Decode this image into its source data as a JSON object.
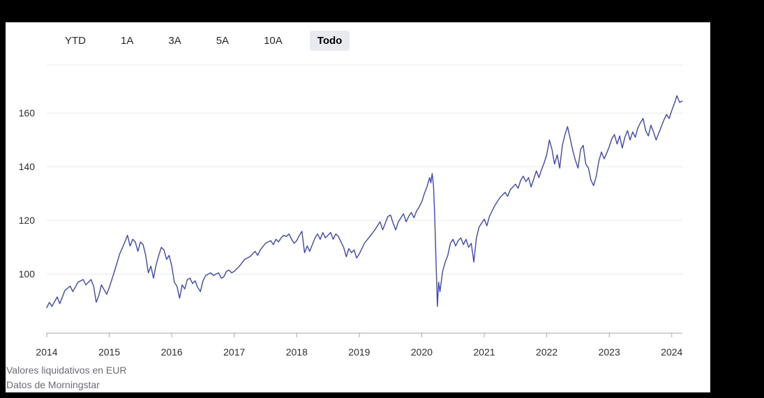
{
  "tabs": {
    "items": [
      {
        "label": "YTD",
        "selected": false
      },
      {
        "label": "1A",
        "selected": false
      },
      {
        "label": "3A",
        "selected": false
      },
      {
        "label": "5A",
        "selected": false
      },
      {
        "label": "10A",
        "selected": false
      },
      {
        "label": "Todo",
        "selected": true
      }
    ]
  },
  "footer": {
    "line1": "Valores liquidativos en EUR",
    "line2": "Datos de Morningstar"
  },
  "colors": {
    "line": "#3b46c0",
    "grid": "#e8e8e8",
    "axis": "#a6a6a6",
    "tick_label": "#2d2d2d",
    "footer_text": "#6b6b75",
    "selected_tab_bg": "#e9eaef"
  },
  "chart_data": {
    "type": "line",
    "title": "",
    "xlabel": "",
    "ylabel": "",
    "legend": "none",
    "grid": "horizontal",
    "x_axis": {
      "ticks": [
        2014,
        2015,
        2016,
        2017,
        2018,
        2019,
        2020,
        2021,
        2022,
        2023,
        2024
      ],
      "range": [
        2014,
        2024.17
      ]
    },
    "y_axis": {
      "ticks": [
        100,
        120,
        140,
        160
      ],
      "range": [
        78,
        178
      ]
    },
    "series": [
      {
        "name": "Valores liquidativos en EUR",
        "points": [
          [
            2014.0,
            87.5
          ],
          [
            2014.042,
            89.5
          ],
          [
            2014.083,
            88.0
          ],
          [
            2014.167,
            91.5
          ],
          [
            2014.208,
            89.0
          ],
          [
            2014.292,
            94.0
          ],
          [
            2014.375,
            95.5
          ],
          [
            2014.417,
            93.5
          ],
          [
            2014.5,
            97.0
          ],
          [
            2014.583,
            98.0
          ],
          [
            2014.625,
            96.0
          ],
          [
            2014.708,
            98.0
          ],
          [
            2014.75,
            95.5
          ],
          [
            2014.792,
            89.5
          ],
          [
            2014.833,
            92.0
          ],
          [
            2014.875,
            96.0
          ],
          [
            2014.958,
            92.5
          ],
          [
            2015.0,
            95.0
          ],
          [
            2015.083,
            101.0
          ],
          [
            2015.167,
            107.5
          ],
          [
            2015.25,
            112.0
          ],
          [
            2015.292,
            114.5
          ],
          [
            2015.333,
            110.5
          ],
          [
            2015.375,
            113.0
          ],
          [
            2015.417,
            112.0
          ],
          [
            2015.458,
            108.5
          ],
          [
            2015.5,
            112.0
          ],
          [
            2015.542,
            111.0
          ],
          [
            2015.583,
            107.0
          ],
          [
            2015.625,
            100.5
          ],
          [
            2015.667,
            103.0
          ],
          [
            2015.708,
            98.5
          ],
          [
            2015.75,
            103.5
          ],
          [
            2015.792,
            107.0
          ],
          [
            2015.833,
            110.0
          ],
          [
            2015.875,
            109.0
          ],
          [
            2015.917,
            105.5
          ],
          [
            2015.958,
            107.0
          ],
          [
            2016.0,
            103.0
          ],
          [
            2016.042,
            97.0
          ],
          [
            2016.083,
            95.5
          ],
          [
            2016.125,
            91.0
          ],
          [
            2016.167,
            96.0
          ],
          [
            2016.208,
            94.5
          ],
          [
            2016.25,
            98.0
          ],
          [
            2016.292,
            98.5
          ],
          [
            2016.333,
            96.5
          ],
          [
            2016.375,
            97.5
          ],
          [
            2016.417,
            95.0
          ],
          [
            2016.458,
            93.5
          ],
          [
            2016.5,
            97.5
          ],
          [
            2016.542,
            99.5
          ],
          [
            2016.583,
            100.0
          ],
          [
            2016.625,
            100.5
          ],
          [
            2016.667,
            99.5
          ],
          [
            2016.708,
            100.0
          ],
          [
            2016.75,
            100.5
          ],
          [
            2016.792,
            98.5
          ],
          [
            2016.833,
            99.0
          ],
          [
            2016.875,
            101.0
          ],
          [
            2016.917,
            101.5
          ],
          [
            2016.958,
            100.5
          ],
          [
            2017.0,
            101.0
          ],
          [
            2017.083,
            103.0
          ],
          [
            2017.167,
            105.5
          ],
          [
            2017.25,
            106.5
          ],
          [
            2017.333,
            108.5
          ],
          [
            2017.375,
            107.0
          ],
          [
            2017.417,
            109.0
          ],
          [
            2017.5,
            111.5
          ],
          [
            2017.583,
            112.5
          ],
          [
            2017.625,
            111.0
          ],
          [
            2017.667,
            113.0
          ],
          [
            2017.708,
            112.0
          ],
          [
            2017.75,
            113.5
          ],
          [
            2017.792,
            114.5
          ],
          [
            2017.833,
            114.0
          ],
          [
            2017.875,
            115.0
          ],
          [
            2017.917,
            113.0
          ],
          [
            2017.958,
            111.5
          ],
          [
            2018.0,
            112.5
          ],
          [
            2018.042,
            114.5
          ],
          [
            2018.083,
            116.0
          ],
          [
            2018.125,
            108.0
          ],
          [
            2018.167,
            110.5
          ],
          [
            2018.208,
            108.5
          ],
          [
            2018.25,
            111.0
          ],
          [
            2018.292,
            113.5
          ],
          [
            2018.333,
            115.0
          ],
          [
            2018.375,
            113.0
          ],
          [
            2018.417,
            115.5
          ],
          [
            2018.458,
            113.5
          ],
          [
            2018.5,
            114.5
          ],
          [
            2018.542,
            115.5
          ],
          [
            2018.583,
            113.0
          ],
          [
            2018.625,
            115.0
          ],
          [
            2018.667,
            114.0
          ],
          [
            2018.708,
            112.0
          ],
          [
            2018.75,
            110.0
          ],
          [
            2018.792,
            106.5
          ],
          [
            2018.833,
            109.5
          ],
          [
            2018.875,
            108.0
          ],
          [
            2018.917,
            109.0
          ],
          [
            2018.958,
            106.0
          ],
          [
            2019.0,
            107.5
          ],
          [
            2019.083,
            111.5
          ],
          [
            2019.167,
            114.0
          ],
          [
            2019.25,
            116.5
          ],
          [
            2019.333,
            119.5
          ],
          [
            2019.375,
            116.5
          ],
          [
            2019.417,
            119.0
          ],
          [
            2019.458,
            121.5
          ],
          [
            2019.5,
            122.0
          ],
          [
            2019.542,
            119.0
          ],
          [
            2019.583,
            116.5
          ],
          [
            2019.625,
            119.5
          ],
          [
            2019.667,
            121.0
          ],
          [
            2019.708,
            122.5
          ],
          [
            2019.75,
            119.5
          ],
          [
            2019.792,
            121.5
          ],
          [
            2019.833,
            123.0
          ],
          [
            2019.875,
            121.0
          ],
          [
            2019.917,
            123.5
          ],
          [
            2019.958,
            125.0
          ],
          [
            2020.0,
            127.0
          ],
          [
            2020.042,
            130.0
          ],
          [
            2020.083,
            132.5
          ],
          [
            2020.125,
            136.0
          ],
          [
            2020.146,
            134.0
          ],
          [
            2020.167,
            137.5
          ],
          [
            2020.188,
            133.0
          ],
          [
            2020.208,
            121.0
          ],
          [
            2020.229,
            104.0
          ],
          [
            2020.25,
            88.0
          ],
          [
            2020.271,
            97.0
          ],
          [
            2020.292,
            93.5
          ],
          [
            2020.333,
            101.0
          ],
          [
            2020.375,
            104.5
          ],
          [
            2020.417,
            107.0
          ],
          [
            2020.458,
            111.5
          ],
          [
            2020.5,
            113.0
          ],
          [
            2020.542,
            110.5
          ],
          [
            2020.583,
            112.5
          ],
          [
            2020.625,
            113.5
          ],
          [
            2020.667,
            111.0
          ],
          [
            2020.708,
            113.0
          ],
          [
            2020.75,
            110.0
          ],
          [
            2020.792,
            111.5
          ],
          [
            2020.833,
            104.5
          ],
          [
            2020.875,
            113.5
          ],
          [
            2020.917,
            117.5
          ],
          [
            2020.958,
            119.0
          ],
          [
            2021.0,
            120.5
          ],
          [
            2021.042,
            118.0
          ],
          [
            2021.083,
            121.5
          ],
          [
            2021.167,
            125.5
          ],
          [
            2021.25,
            128.5
          ],
          [
            2021.333,
            130.5
          ],
          [
            2021.375,
            129.0
          ],
          [
            2021.417,
            131.5
          ],
          [
            2021.5,
            133.5
          ],
          [
            2021.542,
            132.0
          ],
          [
            2021.583,
            135.0
          ],
          [
            2021.625,
            136.5
          ],
          [
            2021.667,
            134.5
          ],
          [
            2021.708,
            136.0
          ],
          [
            2021.75,
            132.5
          ],
          [
            2021.792,
            135.5
          ],
          [
            2021.833,
            138.5
          ],
          [
            2021.875,
            136.0
          ],
          [
            2021.917,
            139.0
          ],
          [
            2021.958,
            141.5
          ],
          [
            2022.0,
            144.5
          ],
          [
            2022.042,
            150.0
          ],
          [
            2022.083,
            146.5
          ],
          [
            2022.125,
            141.0
          ],
          [
            2022.167,
            144.5
          ],
          [
            2022.208,
            139.5
          ],
          [
            2022.25,
            148.0
          ],
          [
            2022.292,
            152.0
          ],
          [
            2022.333,
            155.0
          ],
          [
            2022.375,
            150.5
          ],
          [
            2022.417,
            146.0
          ],
          [
            2022.458,
            142.5
          ],
          [
            2022.5,
            139.5
          ],
          [
            2022.542,
            146.5
          ],
          [
            2022.583,
            148.0
          ],
          [
            2022.625,
            141.0
          ],
          [
            2022.667,
            139.5
          ],
          [
            2022.708,
            135.0
          ],
          [
            2022.75,
            133.0
          ],
          [
            2022.792,
            136.5
          ],
          [
            2022.833,
            142.0
          ],
          [
            2022.875,
            145.5
          ],
          [
            2022.917,
            143.0
          ],
          [
            2022.958,
            145.0
          ],
          [
            2023.0,
            147.5
          ],
          [
            2023.042,
            150.5
          ],
          [
            2023.083,
            152.0
          ],
          [
            2023.125,
            148.5
          ],
          [
            2023.167,
            151.5
          ],
          [
            2023.208,
            147.0
          ],
          [
            2023.25,
            151.0
          ],
          [
            2023.292,
            153.5
          ],
          [
            2023.333,
            150.0
          ],
          [
            2023.375,
            153.0
          ],
          [
            2023.417,
            151.0
          ],
          [
            2023.458,
            154.5
          ],
          [
            2023.5,
            156.5
          ],
          [
            2023.542,
            158.0
          ],
          [
            2023.583,
            153.5
          ],
          [
            2023.625,
            151.5
          ],
          [
            2023.667,
            155.5
          ],
          [
            2023.708,
            153.0
          ],
          [
            2023.75,
            150.0
          ],
          [
            2023.792,
            152.5
          ],
          [
            2023.833,
            155.0
          ],
          [
            2023.875,
            157.5
          ],
          [
            2023.917,
            159.5
          ],
          [
            2023.958,
            158.0
          ],
          [
            2024.0,
            161.0
          ],
          [
            2024.042,
            163.5
          ],
          [
            2024.083,
            166.5
          ],
          [
            2024.125,
            164.0
          ],
          [
            2024.167,
            164.5
          ]
        ]
      }
    ]
  }
}
